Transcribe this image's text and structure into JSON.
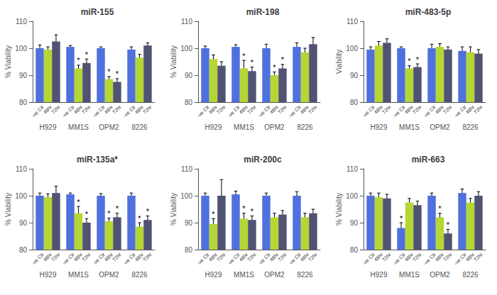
{
  "chart_data": [
    {
      "type": "bar",
      "title": "miR-155",
      "ylabel": "% Viability",
      "categories": [
        "H929",
        "MM1S",
        "OPM2",
        "8226"
      ],
      "series": [
        {
          "name": "-ve Ctr",
          "values": [
            100.0,
            100.5,
            100.0,
            99.5
          ],
          "errors": [
            1.2,
            0.5,
            0.5,
            1.0
          ]
        },
        {
          "name": "48hr",
          "values": [
            99.5,
            92.5,
            88.5,
            96.5
          ],
          "errors": [
            1.0,
            1.2,
            1.0,
            1.2
          ]
        },
        {
          "name": "72hr",
          "values": [
            102.5,
            94.5,
            87.5,
            101.0
          ],
          "errors": [
            2.5,
            1.5,
            1.2,
            1.0
          ]
        }
      ],
      "annotations": [
        {
          "text": "*",
          "category": "MM1S",
          "series": "48hr"
        },
        {
          "text": "*",
          "category": "MM1S",
          "series": "72hr"
        },
        {
          "text": "*",
          "category": "OPM2",
          "series": "48hr"
        },
        {
          "text": "*",
          "category": "OPM2",
          "series": "72hr"
        }
      ],
      "ylim": [
        80,
        110
      ],
      "yticks": [
        80,
        90,
        100,
        110
      ],
      "grid": false
    },
    {
      "type": "bar",
      "title": "miR-198",
      "ylabel": "% Viability",
      "categories": [
        "H929",
        "MM1S",
        "OPM2",
        "8226"
      ],
      "series": [
        {
          "name": "-ve Ctr",
          "values": [
            100.0,
            100.5,
            100.0,
            100.5
          ],
          "errors": [
            0.8,
            0.8,
            1.5,
            1.5
          ]
        },
        {
          "name": "48hr",
          "values": [
            96.0,
            92.5,
            90.0,
            98.5
          ],
          "errors": [
            1.5,
            3.0,
            1.2,
            1.5
          ]
        },
        {
          "name": "72hr",
          "values": [
            93.5,
            91.5,
            92.5,
            101.5
          ],
          "errors": [
            1.5,
            1.5,
            1.5,
            2.5
          ]
        }
      ],
      "annotations": [
        {
          "text": "*",
          "category": "MM1S",
          "series": "48hr"
        },
        {
          "text": "*",
          "category": "MM1S",
          "series": "72hr"
        },
        {
          "text": "*",
          "category": "OPM2",
          "series": "48hr"
        },
        {
          "text": "*",
          "category": "OPM2",
          "series": "72hr"
        }
      ],
      "ylim": [
        80,
        110
      ],
      "yticks": [
        80,
        90,
        100,
        110
      ],
      "grid": false
    },
    {
      "type": "bar",
      "title": "miR-483-5p",
      "ylabel": "Viability",
      "categories": [
        "H929",
        "MM1S",
        "OPM2",
        "8226"
      ],
      "series": [
        {
          "name": "-ve Ctr",
          "values": [
            99.5,
            100.0,
            100.0,
            99.0
          ],
          "errors": [
            1.0,
            0.5,
            1.5,
            1.5
          ]
        },
        {
          "name": "48hr",
          "values": [
            101.0,
            92.5,
            100.5,
            98.5
          ],
          "errors": [
            1.5,
            1.0,
            1.2,
            2.0
          ]
        },
        {
          "name": "72hr",
          "values": [
            102.0,
            93.0,
            99.5,
            98.0
          ],
          "errors": [
            1.5,
            1.2,
            1.0,
            1.5
          ]
        }
      ],
      "annotations": [
        {
          "text": "*",
          "category": "MM1S",
          "series": "48hr"
        },
        {
          "text": "*",
          "category": "MM1S",
          "series": "72hr"
        }
      ],
      "ylim": [
        80,
        110
      ],
      "yticks": [
        80,
        90,
        100,
        110
      ],
      "grid": false
    },
    {
      "type": "bar",
      "title": "miR-135a*",
      "ylabel": "% Viability",
      "categories": [
        "H929",
        "MM1S",
        "OPM2",
        "8226"
      ],
      "series": [
        {
          "name": "-ve Ctr",
          "values": [
            100.0,
            100.5,
            100.0,
            100.0
          ],
          "errors": [
            1.0,
            0.5,
            0.8,
            1.0
          ]
        },
        {
          "name": "48hr",
          "values": [
            99.5,
            93.5,
            90.5,
            88.5
          ],
          "errors": [
            1.2,
            2.5,
            1.2,
            1.5
          ]
        },
        {
          "name": "72hr",
          "values": [
            101.0,
            90.0,
            92.0,
            91.0
          ],
          "errors": [
            2.5,
            1.5,
            1.5,
            1.5
          ]
        }
      ],
      "annotations": [
        {
          "text": "*",
          "category": "MM1S",
          "series": "48hr"
        },
        {
          "text": "*",
          "category": "MM1S",
          "series": "72hr"
        },
        {
          "text": "*",
          "category": "OPM2",
          "series": "48hr"
        },
        {
          "text": "*",
          "category": "OPM2",
          "series": "72hr"
        },
        {
          "text": "*",
          "category": "8226",
          "series": "48hr"
        },
        {
          "text": "*",
          "category": "8226",
          "series": "72hr"
        }
      ],
      "ylim": [
        80,
        110
      ],
      "yticks": [
        80,
        90,
        100,
        110
      ],
      "grid": false
    },
    {
      "type": "bar",
      "title": "miR-200c",
      "ylabel": "% Viability",
      "categories": [
        "H929",
        "MM1S",
        "OPM2",
        "8226"
      ],
      "series": [
        {
          "name": "-ve Ctr",
          "values": [
            100.0,
            100.5,
            100.0,
            100.0
          ],
          "errors": [
            1.0,
            1.2,
            1.0,
            1.5
          ]
        },
        {
          "name": "48hr",
          "values": [
            89.5,
            91.5,
            92.0,
            92.0
          ],
          "errors": [
            2.0,
            2.0,
            1.5,
            1.5
          ]
        },
        {
          "name": "72hr",
          "values": [
            100.0,
            91.0,
            93.0,
            93.5
          ],
          "errors": [
            6.0,
            1.5,
            1.5,
            1.5
          ]
        }
      ],
      "annotations": [
        {
          "text": "*",
          "category": "H929",
          "series": "48hr"
        },
        {
          "text": "*",
          "category": "MM1S",
          "series": "48hr"
        },
        {
          "text": "*",
          "category": "MM1S",
          "series": "72hr"
        }
      ],
      "ylim": [
        80,
        110
      ],
      "yticks": [
        80,
        90,
        100,
        110
      ],
      "grid": false
    },
    {
      "type": "bar",
      "title": "miR-663",
      "ylabel": "% Viability",
      "categories": [
        "H929",
        "MM1S",
        "OPM2",
        "8226"
      ],
      "series": [
        {
          "name": "-ve Ctr",
          "values": [
            100.0,
            88.0,
            100.0,
            101.0
          ],
          "errors": [
            1.0,
            2.0,
            1.0,
            1.5
          ]
        },
        {
          "name": "48hr",
          "values": [
            99.5,
            97.5,
            92.0,
            97.5
          ],
          "errors": [
            1.5,
            1.5,
            1.5,
            1.5
          ]
        },
        {
          "name": "72hr",
          "values": [
            99.0,
            96.5,
            86.0,
            100.0
          ],
          "errors": [
            1.5,
            1.5,
            1.5,
            1.5
          ]
        }
      ],
      "annotations": [
        {
          "text": "*",
          "category": "MM1S",
          "series": "-ve Ctr"
        },
        {
          "text": "*",
          "category": "OPM2",
          "series": "48hr"
        },
        {
          "text": "*",
          "category": "OPM2",
          "series": "72hr"
        }
      ],
      "ylim": [
        80,
        110
      ],
      "yticks": [
        80,
        90,
        100,
        110
      ],
      "grid": false
    }
  ]
}
